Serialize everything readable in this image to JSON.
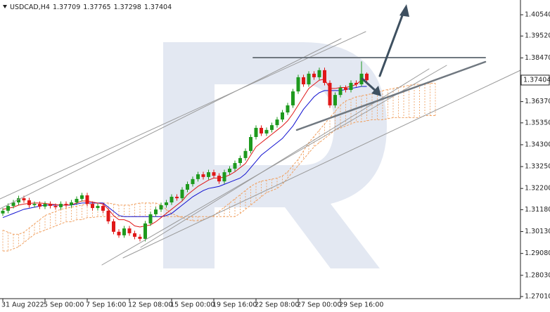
{
  "chart_data": {
    "type": "candlestick",
    "symbol": "USDCAD,H4",
    "header_ohlc": [
      1.37709,
      1.37765,
      1.37298,
      1.37404
    ],
    "current_price": 1.37404,
    "up_color": "#1e9a1e",
    "down_color": "#e01818",
    "tenkan_color": "#e01818",
    "kijun_color": "#1010d0",
    "cloud_color": "#f0a060",
    "ylim": [
      1.26909,
      1.41249
    ],
    "yticks": [
      {
        "value": 1.4054,
        "label": "1.40540"
      },
      {
        "value": 1.3952,
        "label": "1.39520"
      },
      {
        "value": 1.3847,
        "label": "1.38470"
      },
      {
        "value": 1.3637,
        "label": "1.36370"
      },
      {
        "value": 1.3535,
        "label": "1.35350"
      },
      {
        "value": 1.343,
        "label": "1.34300"
      },
      {
        "value": 1.3325,
        "label": "1.33250"
      },
      {
        "value": 1.322,
        "label": "1.32200"
      },
      {
        "value": 1.3118,
        "label": "1.31180"
      },
      {
        "value": 1.3013,
        "label": "1.30130"
      },
      {
        "value": 1.2908,
        "label": "1.29080"
      },
      {
        "value": 1.2803,
        "label": "1.28030"
      },
      {
        "value": 1.2701,
        "label": "1.27010"
      }
    ],
    "xticks": [
      {
        "value": 0,
        "label": "31 Aug 2022"
      },
      {
        "value": 8,
        "label": "5 Sep 00:00"
      },
      {
        "value": 16,
        "label": "7 Sep 16:00"
      },
      {
        "value": 24,
        "label": "12 Sep 08:00"
      },
      {
        "value": 32,
        "label": "15 Sep 00:00"
      },
      {
        "value": 40,
        "label": "19 Sep 16:00"
      },
      {
        "value": 48,
        "label": "22 Sep 08:00"
      },
      {
        "value": 56,
        "label": "27 Sep 00:00"
      },
      {
        "value": 64,
        "label": "29 Sep 16:00"
      }
    ],
    "open": [
      1.31,
      1.3113,
      1.3136,
      1.3153,
      1.3173,
      1.3163,
      1.314,
      1.3146,
      1.3133,
      1.3146,
      1.3136,
      1.313,
      1.3146,
      1.314,
      1.3153,
      1.317,
      1.3187,
      1.3146,
      1.3126,
      1.3136,
      1.3113,
      1.3062,
      1.3012,
      1.2995,
      1.3028,
      1.3005,
      1.2988,
      1.2978,
      1.3052,
      1.3096,
      1.3119,
      1.314,
      1.3153,
      1.318,
      1.3173,
      1.3214,
      1.3241,
      1.3265,
      1.3288,
      1.3275,
      1.3298,
      1.3281,
      1.3254,
      1.3298,
      1.3315,
      1.3342,
      1.3366,
      1.34,
      1.3467,
      1.3511,
      1.3484,
      1.3501,
      1.3524,
      1.3551,
      1.3585,
      1.3619,
      1.3686,
      1.3754,
      1.372,
      1.3771,
      1.3754,
      1.3788,
      1.3727,
      1.3619,
      1.3669,
      1.3703,
      1.3693,
      1.3727,
      1.372,
      1.3771
    ],
    "high": [
      1.3125,
      1.3148,
      1.3165,
      1.3185,
      1.3185,
      1.3175,
      1.3158,
      1.3158,
      1.3158,
      1.3158,
      1.3148,
      1.3158,
      1.3158,
      1.3165,
      1.3182,
      1.3199,
      1.3199,
      1.3158,
      1.3148,
      1.3148,
      1.3125,
      1.3074,
      1.3024,
      1.304,
      1.304,
      1.3017,
      1.3,
      1.3064,
      1.3108,
      1.3131,
      1.3152,
      1.3165,
      1.3192,
      1.3192,
      1.3226,
      1.3253,
      1.3277,
      1.33,
      1.33,
      1.331,
      1.331,
      1.3293,
      1.331,
      1.3327,
      1.3354,
      1.3378,
      1.3412,
      1.3479,
      1.3523,
      1.3523,
      1.3513,
      1.3536,
      1.3563,
      1.3597,
      1.3631,
      1.3698,
      1.3766,
      1.3766,
      1.3783,
      1.3783,
      1.38,
      1.38,
      1.3739,
      1.3681,
      1.3715,
      1.3715,
      1.3739,
      1.3739,
      1.383,
      1.3777
    ],
    "low": [
      1.3088,
      1.3101,
      1.3124,
      1.3141,
      1.3151,
      1.3128,
      1.3128,
      1.3121,
      1.3121,
      1.3124,
      1.3118,
      1.3118,
      1.3128,
      1.3128,
      1.3141,
      1.3158,
      1.3134,
      1.3114,
      1.3114,
      1.3101,
      1.305,
      1.3,
      1.2983,
      1.2983,
      1.2993,
      1.2976,
      1.2966,
      1.2966,
      1.304,
      1.3084,
      1.3107,
      1.3128,
      1.3141,
      1.3161,
      1.3161,
      1.3202,
      1.3229,
      1.3253,
      1.3263,
      1.3263,
      1.3269,
      1.3242,
      1.3242,
      1.3286,
      1.3303,
      1.333,
      1.3354,
      1.3388,
      1.3455,
      1.3472,
      1.3472,
      1.3489,
      1.3512,
      1.3539,
      1.3573,
      1.3607,
      1.3674,
      1.3708,
      1.3708,
      1.3742,
      1.3742,
      1.3715,
      1.3607,
      1.3607,
      1.3657,
      1.3681,
      1.3681,
      1.3708,
      1.3708,
      1.373
    ],
    "close": [
      1.3113,
      1.3136,
      1.3153,
      1.3173,
      1.3163,
      1.314,
      1.3146,
      1.3133,
      1.3146,
      1.3136,
      1.313,
      1.3146,
      1.314,
      1.3153,
      1.317,
      1.3187,
      1.3146,
      1.3126,
      1.3136,
      1.3113,
      1.3062,
      1.3012,
      1.2995,
      1.3028,
      1.3005,
      1.2988,
      1.2978,
      1.3052,
      1.3096,
      1.3119,
      1.314,
      1.3153,
      1.318,
      1.3173,
      1.3214,
      1.3241,
      1.3265,
      1.3288,
      1.3275,
      1.3298,
      1.3281,
      1.3254,
      1.3298,
      1.3315,
      1.3342,
      1.3366,
      1.34,
      1.3467,
      1.3511,
      1.3484,
      1.3501,
      1.3524,
      1.3551,
      1.3585,
      1.3619,
      1.3686,
      1.3754,
      1.372,
      1.3771,
      1.3754,
      1.3788,
      1.3727,
      1.3619,
      1.3669,
      1.3703,
      1.3693,
      1.3727,
      1.372,
      1.3771,
      1.374
    ],
    "tenkan": [
      1.312,
      1.3125,
      1.313,
      1.314,
      1.3145,
      1.3148,
      1.315,
      1.315,
      1.3148,
      1.3145,
      1.3142,
      1.314,
      1.314,
      1.3142,
      1.315,
      1.316,
      1.316,
      1.3155,
      1.315,
      1.3145,
      1.312,
      1.309,
      1.307,
      1.307,
      1.306,
      1.304,
      1.3035,
      1.304,
      1.3045,
      1.306,
      1.308,
      1.31,
      1.312,
      1.314,
      1.316,
      1.319,
      1.321,
      1.323,
      1.3245,
      1.326,
      1.327,
      1.327,
      1.3275,
      1.3285,
      1.33,
      1.332,
      1.334,
      1.338,
      1.342,
      1.344,
      1.346,
      1.348,
      1.35,
      1.352,
      1.3545,
      1.358,
      1.362,
      1.366,
      1.37,
      1.372,
      1.374,
      1.3745,
      1.37,
      1.37,
      1.3705,
      1.3705,
      1.371,
      1.372,
      1.374,
      1.3745
    ],
    "kijun": [
      1.308,
      1.309,
      1.31,
      1.311,
      1.312,
      1.3125,
      1.313,
      1.3135,
      1.314,
      1.314,
      1.314,
      1.314,
      1.314,
      1.314,
      1.3145,
      1.315,
      1.315,
      1.315,
      1.315,
      1.315,
      1.313,
      1.311,
      1.309,
      1.3085,
      1.3085,
      1.3085,
      1.3085,
      1.3085,
      1.3085,
      1.3085,
      1.3085,
      1.309,
      1.31,
      1.312,
      1.314,
      1.316,
      1.318,
      1.3195,
      1.321,
      1.322,
      1.3225,
      1.323,
      1.324,
      1.325,
      1.326,
      1.327,
      1.329,
      1.332,
      1.335,
      1.338,
      1.34,
      1.342,
      1.344,
      1.346,
      1.349,
      1.352,
      1.356,
      1.36,
      1.363,
      1.366,
      1.368,
      1.369,
      1.369,
      1.369,
      1.369,
      1.3695,
      1.37,
      1.3705,
      1.371,
      1.371
    ],
    "span_a": [
      1.302,
      1.301,
      1.3,
      1.3,
      1.301,
      1.303,
      1.305,
      1.307,
      1.309,
      1.31,
      1.311,
      1.312,
      1.3125,
      1.313,
      1.3135,
      1.314,
      1.3145,
      1.3145,
      1.315,
      1.315,
      1.315,
      1.3145,
      1.314,
      1.314,
      1.314,
      1.3145,
      1.315,
      1.315,
      1.315,
      1.315,
      1.314,
      1.312,
      1.31,
      1.309,
      1.308,
      1.307,
      1.3065,
      1.3065,
      1.307,
      1.308,
      1.309,
      1.311,
      1.313,
      1.315,
      1.317,
      1.319,
      1.321,
      1.323,
      1.3245,
      1.3255,
      1.326,
      1.3265,
      1.327,
      1.328,
      1.33,
      1.333,
      1.336,
      1.34,
      1.344,
      1.347,
      1.35,
      1.353,
      1.356,
      1.359,
      1.362,
      1.364,
      1.365,
      1.366,
      1.3665,
      1.367,
      1.3675,
      1.368,
      1.369,
      1.3695,
      1.37,
      1.3705,
      1.371,
      1.3715,
      1.372,
      1.372,
      1.372,
      1.3725,
      1.3725
    ],
    "span_b": [
      1.292,
      1.292,
      1.293,
      1.294,
      1.296,
      1.298,
      1.3,
      1.301,
      1.302,
      1.303,
      1.304,
      1.305,
      1.306,
      1.306,
      1.307,
      1.307,
      1.308,
      1.308,
      1.3085,
      1.3085,
      1.3085,
      1.3085,
      1.3085,
      1.3085,
      1.3085,
      1.3085,
      1.3085,
      1.3085,
      1.3085,
      1.3085,
      1.3085,
      1.3085,
      1.3085,
      1.3085,
      1.3085,
      1.3085,
      1.3085,
      1.3085,
      1.3085,
      1.3085,
      1.3085,
      1.3085,
      1.3085,
      1.3085,
      1.3085,
      1.31,
      1.312,
      1.314,
      1.316,
      1.318,
      1.32,
      1.321,
      1.322,
      1.324,
      1.327,
      1.33,
      1.333,
      1.336,
      1.339,
      1.342,
      1.344,
      1.346,
      1.348,
      1.35,
      1.351,
      1.352,
      1.353,
      1.354,
      1.354,
      1.3545,
      1.355,
      1.355,
      1.355,
      1.3555,
      1.356,
      1.356,
      1.356,
      1.356,
      1.356,
      1.356,
      1.357,
      1.357,
      1.357
    ]
  }
}
